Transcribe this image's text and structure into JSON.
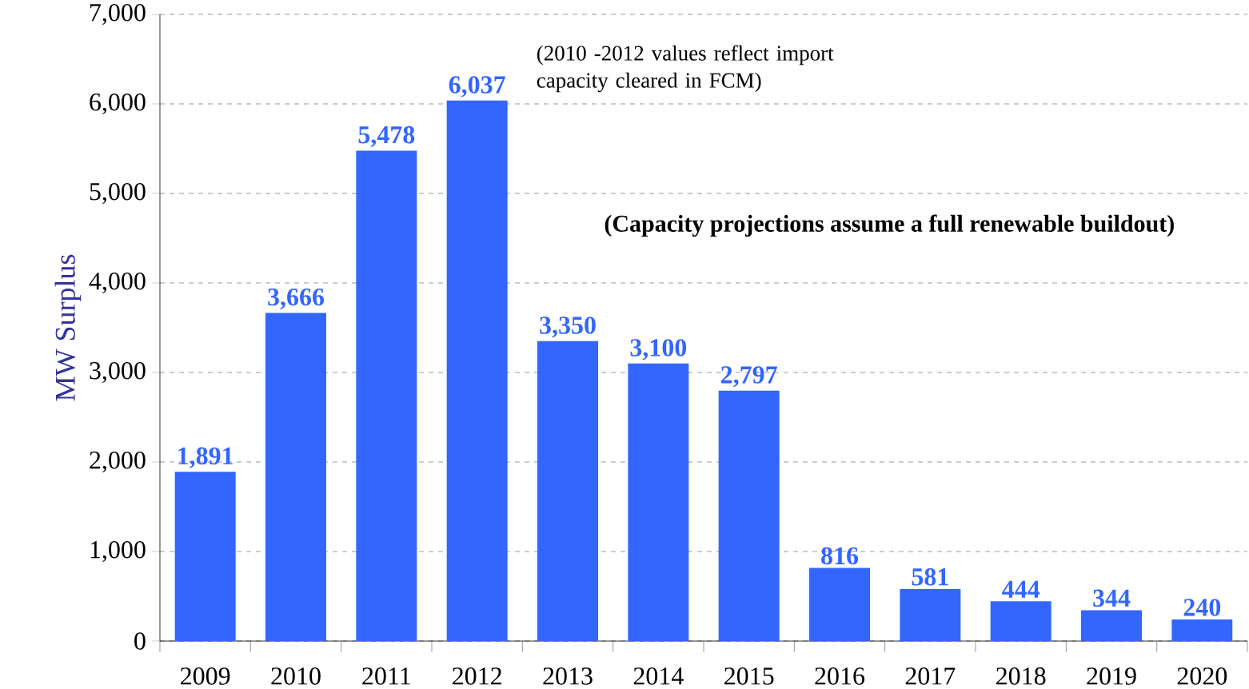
{
  "chart_data": {
    "type": "bar",
    "ylabel": "MW Surplus",
    "categories": [
      "2009",
      "2010",
      "2011",
      "2012",
      "2013",
      "2014",
      "2015",
      "2016",
      "2017",
      "2018",
      "2019",
      "2020"
    ],
    "values": [
      1891,
      3666,
      5478,
      6037,
      3350,
      3100,
      2797,
      816,
      581,
      444,
      344,
      240
    ],
    "value_labels": [
      "1,891",
      "3,666",
      "5,478",
      "6,037",
      "3,350",
      "3,100",
      "2,797",
      "816",
      "581",
      "444",
      "344",
      "240"
    ],
    "color": "#3366ff",
    "ylim": [
      0,
      7000
    ],
    "yticks": [
      0,
      {
        "value": 1000,
        "label": "1,000"
      },
      {
        "value": 2000,
        "label": "2,000"
      },
      {
        "value": 3000,
        "label": "3,000"
      },
      {
        "value": 4000,
        "label": "4,000"
      },
      {
        "value": 5000,
        "label": "5,000"
      },
      {
        "value": 6000,
        "label": "6,000"
      },
      {
        "value": 7000,
        "label": "7,000"
      }
    ],
    "grid": "y",
    "annotations": [
      "(2010 -2012 values reflect import capacity cleared in FCM)",
      "(Capacity projections assume a full renewable buildout)"
    ]
  }
}
